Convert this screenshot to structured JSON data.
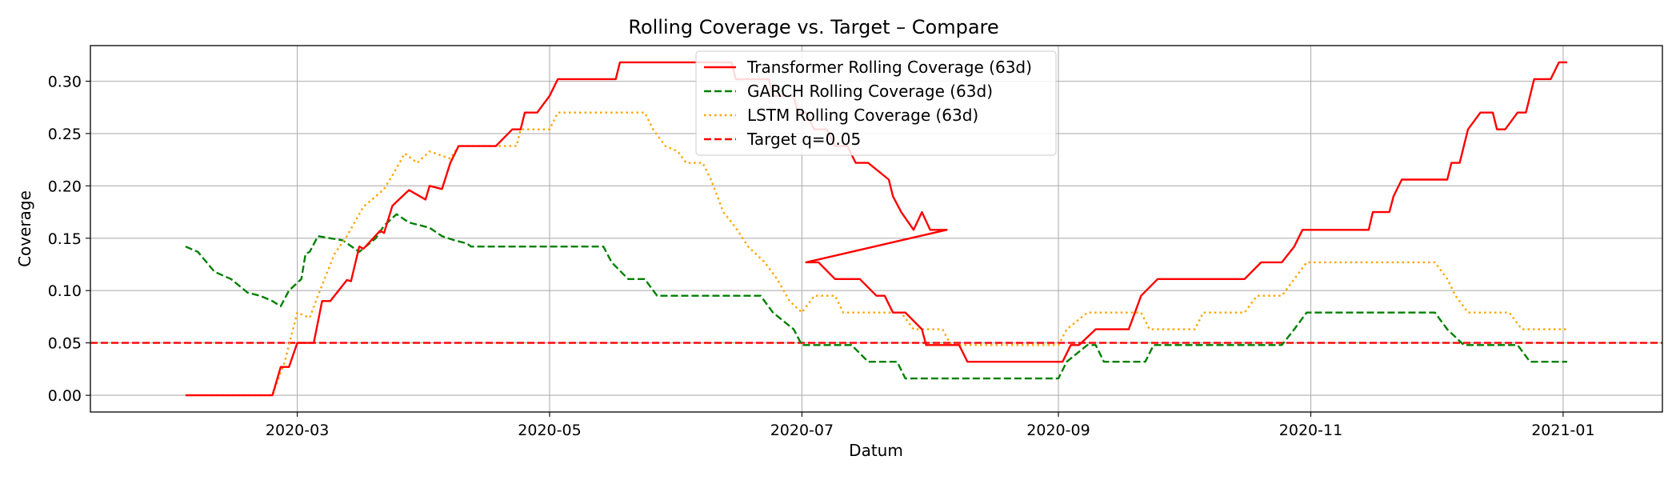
{
  "chart_data": {
    "type": "line",
    "title": "Rolling Coverage vs. Target – Compare",
    "xlabel": "Datum",
    "ylabel": "Coverage",
    "x_range": [
      "2020-01-11",
      "2021-01-25"
    ],
    "ylim": [
      -0.016,
      0.334
    ],
    "x_ticks": [
      "2020-03-01",
      "2020-05-01",
      "2020-07-01",
      "2020-09-01",
      "2020-11-01",
      "2021-01-01"
    ],
    "x_tick_labels": [
      "2020-03",
      "2020-05",
      "2020-07",
      "2020-09",
      "2020-11",
      "2021-01"
    ],
    "y_ticks": [
      0.0,
      0.05,
      0.1,
      0.15,
      0.2,
      0.25,
      0.3
    ],
    "y_tick_labels": [
      "0.00",
      "0.05",
      "0.10",
      "0.15",
      "0.20",
      "0.25",
      "0.30"
    ],
    "grid": true,
    "legend_position": "top-center",
    "target_line": {
      "name": "Target q=0.05",
      "value": 0.05,
      "color": "#ff0000",
      "style": "dashed"
    },
    "series": [
      {
        "name": "Transformer Rolling Coverage (63d)",
        "color": "#ff0000",
        "style": "solid",
        "points": [
          [
            "2020-02-03",
            0.0
          ],
          [
            "2020-02-24",
            0.0
          ],
          [
            "2020-02-26",
            0.027
          ],
          [
            "2020-02-28",
            0.027
          ],
          [
            "2020-03-01",
            0.05
          ],
          [
            "2020-03-05",
            0.05
          ],
          [
            "2020-03-06",
            0.07
          ],
          [
            "2020-03-07",
            0.09
          ],
          [
            "2020-03-09",
            0.09
          ],
          [
            "2020-03-13",
            0.11
          ],
          [
            "2020-03-14",
            0.109
          ],
          [
            "2020-03-16",
            0.142
          ],
          [
            "2020-03-17",
            0.14
          ],
          [
            "2020-03-21",
            0.157
          ],
          [
            "2020-03-22",
            0.155
          ],
          [
            "2020-03-24",
            0.181
          ],
          [
            "2020-03-28",
            0.196
          ],
          [
            "2020-04-01",
            0.187
          ],
          [
            "2020-04-02",
            0.2
          ],
          [
            "2020-04-05",
            0.197
          ],
          [
            "2020-04-07",
            0.222
          ],
          [
            "2020-04-09",
            0.238
          ],
          [
            "2020-04-18",
            0.238
          ],
          [
            "2020-04-22",
            0.254
          ],
          [
            "2020-04-24",
            0.254
          ],
          [
            "2020-04-25",
            0.27
          ],
          [
            "2020-04-28",
            0.27
          ],
          [
            "2020-05-01",
            0.286
          ],
          [
            "2020-05-03",
            0.302
          ],
          [
            "2020-05-09",
            0.302
          ],
          [
            "2020-05-17",
            0.302
          ],
          [
            "2020-05-18",
            0.318
          ],
          [
            "2020-06-14",
            0.318
          ],
          [
            "2020-06-15",
            0.302
          ],
          [
            "2020-06-23",
            0.302
          ],
          [
            "2020-06-24",
            0.286
          ],
          [
            "2020-06-29",
            0.286
          ],
          [
            "2020-06-30",
            0.27
          ],
          [
            "2020-07-02",
            0.27
          ],
          [
            "2020-07-04",
            0.254
          ],
          [
            "2020-07-07",
            0.254
          ],
          [
            "2020-07-09",
            0.238
          ],
          [
            "2020-07-12",
            0.238
          ],
          [
            "2020-07-14",
            0.222
          ],
          [
            "2020-07-17",
            0.222
          ],
          [
            "2020-07-22",
            0.206
          ],
          [
            "2020-07-23",
            0.19
          ],
          [
            "2020-07-25",
            0.175
          ],
          [
            "2020-07-28",
            0.158
          ],
          [
            "2020-07-30",
            0.175
          ],
          [
            "2020-08-01",
            0.158
          ],
          [
            "2020-08-05",
            0.158
          ],
          [
            "2020-07-02",
            0.127
          ],
          [
            "2020-07-05",
            0.127
          ],
          [
            "2020-07-09",
            0.111
          ],
          [
            "2020-07-15",
            0.111
          ],
          [
            "2020-07-19",
            0.095
          ],
          [
            "2020-07-21",
            0.095
          ],
          [
            "2020-07-23",
            0.079
          ],
          [
            "2020-07-26",
            0.079
          ],
          [
            "2020-07-30",
            0.063
          ],
          [
            "2020-07-31",
            0.048
          ],
          [
            "2020-08-08",
            0.048
          ],
          [
            "2020-08-10",
            0.032
          ],
          [
            "2020-09-02",
            0.032
          ],
          [
            "2020-09-04",
            0.048
          ],
          [
            "2020-09-06",
            0.048
          ],
          [
            "2020-09-10",
            0.063
          ],
          [
            "2020-09-18",
            0.063
          ],
          [
            "2020-09-21",
            0.095
          ],
          [
            "2020-09-25",
            0.111
          ],
          [
            "2020-10-16",
            0.111
          ],
          [
            "2020-10-20",
            0.127
          ],
          [
            "2020-10-25",
            0.127
          ],
          [
            "2020-10-28",
            0.142
          ],
          [
            "2020-10-30",
            0.158
          ],
          [
            "2020-11-15",
            0.158
          ],
          [
            "2020-11-16",
            0.175
          ],
          [
            "2020-11-20",
            0.175
          ],
          [
            "2020-11-21",
            0.19
          ],
          [
            "2020-11-23",
            0.206
          ],
          [
            "2020-12-04",
            0.206
          ],
          [
            "2020-12-05",
            0.222
          ],
          [
            "2020-12-07",
            0.222
          ],
          [
            "2020-12-09",
            0.254
          ],
          [
            "2020-12-12",
            0.27
          ],
          [
            "2020-12-15",
            0.27
          ],
          [
            "2020-12-16",
            0.254
          ],
          [
            "2020-12-18",
            0.254
          ],
          [
            "2020-12-21",
            0.27
          ],
          [
            "2020-12-23",
            0.27
          ],
          [
            "2020-12-25",
            0.302
          ],
          [
            "2020-12-29",
            0.302
          ],
          [
            "2020-12-31",
            0.318
          ],
          [
            "2021-01-02",
            0.318
          ]
        ]
      },
      {
        "name": "GARCH Rolling Coverage (63d)",
        "color": "#008000",
        "style": "dashed",
        "points": [
          [
            "2020-02-03",
            0.142
          ],
          [
            "2020-02-06",
            0.137
          ],
          [
            "2020-02-10",
            0.118
          ],
          [
            "2020-02-14",
            0.111
          ],
          [
            "2020-02-18",
            0.098
          ],
          [
            "2020-02-21",
            0.095
          ],
          [
            "2020-02-24",
            0.09
          ],
          [
            "2020-02-26",
            0.085
          ],
          [
            "2020-02-28",
            0.1
          ],
          [
            "2020-03-02",
            0.111
          ],
          [
            "2020-03-03",
            0.135
          ],
          [
            "2020-03-04",
            0.137
          ],
          [
            "2020-03-06",
            0.152
          ],
          [
            "2020-03-12",
            0.148
          ],
          [
            "2020-03-16",
            0.137
          ],
          [
            "2020-03-20",
            0.15
          ],
          [
            "2020-03-22",
            0.162
          ],
          [
            "2020-03-25",
            0.173
          ],
          [
            "2020-03-28",
            0.165
          ],
          [
            "2020-04-02",
            0.16
          ],
          [
            "2020-04-05",
            0.152
          ],
          [
            "2020-04-08",
            0.148
          ],
          [
            "2020-04-11",
            0.145
          ],
          [
            "2020-04-12",
            0.142
          ],
          [
            "2020-04-25",
            0.142
          ],
          [
            "2020-05-01",
            0.142
          ],
          [
            "2020-05-14",
            0.142
          ],
          [
            "2020-05-16",
            0.127
          ],
          [
            "2020-05-20",
            0.111
          ],
          [
            "2020-05-24",
            0.111
          ],
          [
            "2020-05-27",
            0.095
          ],
          [
            "2020-06-21",
            0.095
          ],
          [
            "2020-06-24",
            0.079
          ],
          [
            "2020-06-29",
            0.063
          ],
          [
            "2020-07-01",
            0.048
          ],
          [
            "2020-07-13",
            0.048
          ],
          [
            "2020-07-17",
            0.032
          ],
          [
            "2020-07-24",
            0.032
          ],
          [
            "2020-07-26",
            0.016
          ],
          [
            "2020-09-01",
            0.016
          ],
          [
            "2020-09-03",
            0.032
          ],
          [
            "2020-09-08",
            0.048
          ],
          [
            "2020-09-10",
            0.048
          ],
          [
            "2020-09-12",
            0.032
          ],
          [
            "2020-09-19",
            0.032
          ],
          [
            "2020-09-22",
            0.032
          ],
          [
            "2020-09-24",
            0.048
          ],
          [
            "2020-10-25",
            0.048
          ],
          [
            "2020-10-28",
            0.063
          ],
          [
            "2020-10-31",
            0.079
          ],
          [
            "2020-12-01",
            0.079
          ],
          [
            "2020-12-04",
            0.063
          ],
          [
            "2020-12-08",
            0.048
          ],
          [
            "2020-12-21",
            0.048
          ],
          [
            "2020-12-24",
            0.032
          ],
          [
            "2021-01-02",
            0.032
          ]
        ]
      },
      {
        "name": "LSTM Rolling Coverage (63d)",
        "color": "#ffa500",
        "style": "dotted",
        "points": [
          [
            "2020-02-03",
            0.0
          ],
          [
            "2020-02-24",
            0.0
          ],
          [
            "2020-02-27",
            0.032
          ],
          [
            "2020-02-28",
            0.048
          ],
          [
            "2020-03-01",
            0.079
          ],
          [
            "2020-03-04",
            0.074
          ],
          [
            "2020-03-06",
            0.095
          ],
          [
            "2020-03-10",
            0.135
          ],
          [
            "2020-03-13",
            0.152
          ],
          [
            "2020-03-17",
            0.18
          ],
          [
            "2020-03-20",
            0.19
          ],
          [
            "2020-03-22",
            0.197
          ],
          [
            "2020-03-24",
            0.21
          ],
          [
            "2020-03-27",
            0.231
          ],
          [
            "2020-03-30",
            0.222
          ],
          [
            "2020-04-02",
            0.233
          ],
          [
            "2020-04-07",
            0.226
          ],
          [
            "2020-04-09",
            0.238
          ],
          [
            "2020-04-20",
            0.238
          ],
          [
            "2020-04-23",
            0.238
          ],
          [
            "2020-04-24",
            0.254
          ],
          [
            "2020-05-01",
            0.254
          ],
          [
            "2020-05-03",
            0.27
          ],
          [
            "2020-05-24",
            0.27
          ],
          [
            "2020-05-26",
            0.254
          ],
          [
            "2020-05-29",
            0.238
          ],
          [
            "2020-06-01",
            0.233
          ],
          [
            "2020-06-03",
            0.222
          ],
          [
            "2020-06-07",
            0.222
          ],
          [
            "2020-06-09",
            0.206
          ],
          [
            "2020-06-12",
            0.175
          ],
          [
            "2020-06-15",
            0.16
          ],
          [
            "2020-06-18",
            0.142
          ],
          [
            "2020-06-22",
            0.127
          ],
          [
            "2020-06-25",
            0.111
          ],
          [
            "2020-06-28",
            0.09
          ],
          [
            "2020-07-01",
            0.079
          ],
          [
            "2020-07-04",
            0.095
          ],
          [
            "2020-07-09",
            0.095
          ],
          [
            "2020-07-11",
            0.079
          ],
          [
            "2020-07-25",
            0.079
          ],
          [
            "2020-07-28",
            0.063
          ],
          [
            "2020-08-04",
            0.063
          ],
          [
            "2020-08-06",
            0.048
          ],
          [
            "2020-09-01",
            0.048
          ],
          [
            "2020-09-03",
            0.063
          ],
          [
            "2020-09-08",
            0.079
          ],
          [
            "2020-09-21",
            0.079
          ],
          [
            "2020-09-23",
            0.063
          ],
          [
            "2020-10-04",
            0.063
          ],
          [
            "2020-10-06",
            0.079
          ],
          [
            "2020-10-16",
            0.079
          ],
          [
            "2020-10-19",
            0.095
          ],
          [
            "2020-10-25",
            0.095
          ],
          [
            "2020-10-28",
            0.111
          ],
          [
            "2020-10-31",
            0.127
          ],
          [
            "2020-12-01",
            0.127
          ],
          [
            "2020-12-04",
            0.111
          ],
          [
            "2020-12-06",
            0.095
          ],
          [
            "2020-12-09",
            0.079
          ],
          [
            "2020-12-19",
            0.079
          ],
          [
            "2020-12-22",
            0.063
          ],
          [
            "2021-01-02",
            0.063
          ]
        ]
      }
    ]
  }
}
